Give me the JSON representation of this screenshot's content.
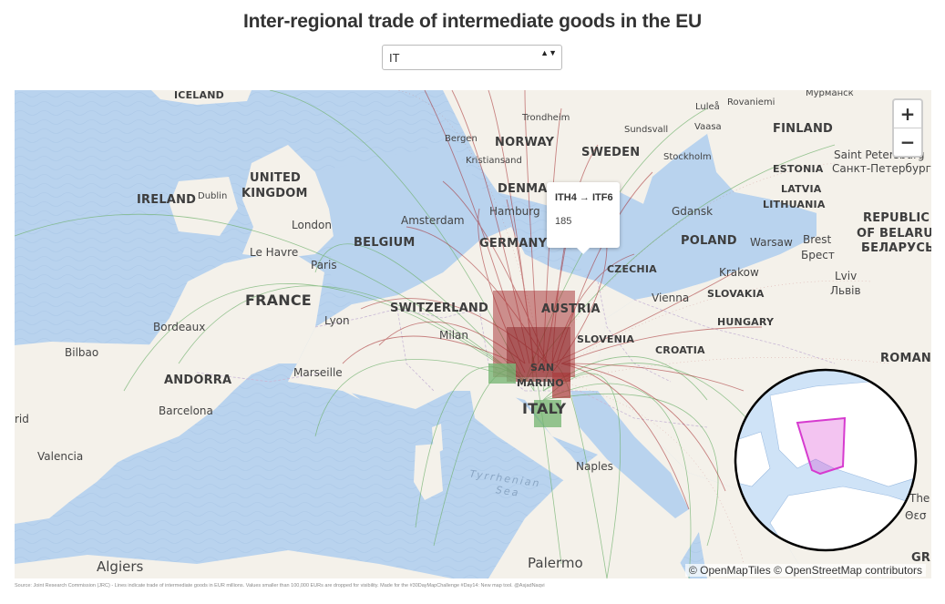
{
  "title": "Inter-regional trade of intermediate goods in the EU",
  "selector": {
    "value": "IT",
    "arrows": "▲▼"
  },
  "zoom": {
    "in_label": "+",
    "out_label": "−"
  },
  "tooltip": {
    "route": "ITH4 → ITF6",
    "value": "185"
  },
  "attribution": "© OpenMapTiles © OpenStreetMap contributors",
  "source": "Source: Joint Research Commission (JRC) - Lines indicate trade of intermediate goods in EUR millions. Values smaller than 100,000 EURs are dropped for visibility. Made for the #30DayMapChallenge #Day14: New map tool. @AsjadNaqvi",
  "colors": {
    "water": "#b9d3ee",
    "land": "#f4f1ea",
    "flow_export": "#a3282b",
    "flow_import": "#6db06a",
    "globe_region": "#d63bcf"
  },
  "labels": {
    "countries": [
      "ICELAND",
      "NORWAY",
      "SWEDEN",
      "FINLAND",
      "ESTONIA",
      "LATVIA",
      "LITHUANIA",
      "UNITED",
      "KINGDOM",
      "IRELAND",
      "DENMARK",
      "BELGIUM",
      "GERMANY",
      "POLAND",
      "CZECHIA",
      "SLOVAKIA",
      "FRANCE",
      "SWITZERLAND",
      "AUSTRIA",
      "HUNGARY",
      "SLOVENIA",
      "CROATIA",
      "ANDORRA",
      "ITALY",
      "SAN",
      "MARINO",
      "REPUBLIC",
      "OF BELARUS",
      "БЕЛАРУСЬ",
      "ROMAN"
    ],
    "cities": [
      "Мурманск",
      "Luleå",
      "Rovaniemi",
      "Trondheim",
      "Bergen",
      "Sundsvall",
      "Vaasa",
      "Kristiansand",
      "Stockholm",
      "Saint Petersburg",
      "Санкт-Петербург",
      "Dublin",
      "London",
      "Amsterdam",
      "Hamburg",
      "Gdansk",
      "Warsaw",
      "Brest",
      "Брест",
      "Le Havre",
      "Paris",
      "Krakow",
      "Vienna",
      "Lviv",
      "Львів",
      "Bordeaux",
      "Lyon",
      "Milan",
      "Bilbao",
      "Marseille",
      "Barcelona",
      "Valencia",
      "rid",
      "Naples",
      "Algiers",
      "Palermo",
      "The",
      "Θεσ",
      "GR"
    ],
    "seas": [
      "Tyrrhenian",
      "Sea"
    ]
  }
}
